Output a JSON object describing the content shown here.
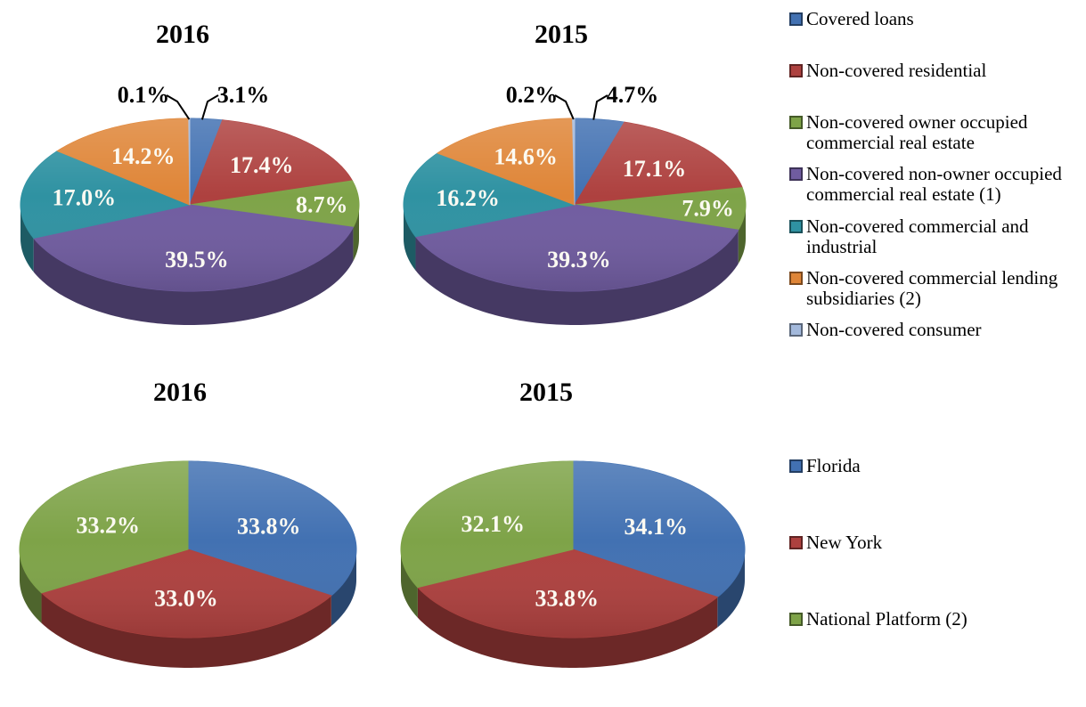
{
  "page": {
    "background": "#FFFFFF"
  },
  "text_colors": {
    "title": "#000000",
    "label_inside": "#FCFAF2",
    "label_outside": "#000000",
    "legend": "#000000",
    "leader_line": "#000000"
  },
  "chart_data": {
    "type": "pie",
    "style": "3d-pie",
    "legend_position": "right",
    "charts": [
      {
        "id": "loans-2016",
        "title": "2016",
        "legend": "loans",
        "categories": [
          "Covered loans",
          "Non-covered residential",
          "Non-covered owner occupied commercial real estate",
          "Non-covered non-owner occupied commercial real estate (1)",
          "Non-covered commercial and industrial",
          "Non-covered commercial lending subsidiaries (2)",
          "Non-covered consumer"
        ],
        "values": [
          3.1,
          17.4,
          8.7,
          39.5,
          17.0,
          14.2,
          0.1
        ],
        "labels": [
          "3.1%",
          "17.4%",
          "8.7%",
          "39.5%",
          "17.0%",
          "14.2%",
          "0.1%"
        ]
      },
      {
        "id": "loans-2015",
        "title": "2015",
        "legend": "loans",
        "categories": [
          "Covered loans",
          "Non-covered residential",
          "Non-covered owner occupied commercial real estate",
          "Non-covered non-owner occupied commercial real estate (1)",
          "Non-covered commercial and industrial",
          "Non-covered commercial lending subsidiaries (2)",
          "Non-covered consumer"
        ],
        "values": [
          4.7,
          17.1,
          7.9,
          39.3,
          16.2,
          14.6,
          0.2
        ],
        "labels": [
          "4.7%",
          "17.1%",
          "7.9%",
          "39.3%",
          "16.2%",
          "14.6%",
          "0.2%"
        ]
      },
      {
        "id": "geography-2016",
        "title": "2016",
        "legend": "geography",
        "categories": [
          "Florida",
          "New York",
          "National Platform (2)"
        ],
        "values": [
          33.8,
          33.0,
          33.2
        ],
        "labels": [
          "33.8%",
          "33.0%",
          "33.2%"
        ]
      },
      {
        "id": "geography-2015",
        "title": "2015",
        "legend": "geography",
        "categories": [
          "Florida",
          "New York",
          "National Platform (2)"
        ],
        "values": [
          34.1,
          33.8,
          32.1
        ],
        "labels": [
          "34.1%",
          "33.8%",
          "32.1%"
        ]
      }
    ],
    "legends": [
      {
        "id": "loans",
        "entries": [
          {
            "label": "Covered loans",
            "color": "#4271B2"
          },
          {
            "label": "Non-covered residential",
            "color": "#AE413F"
          },
          {
            "label": "Non-covered owner occupied commercial real estate",
            "color": "#7EA348"
          },
          {
            "label": "Non-covered non-owner occupied commercial real estate (1)",
            "color": "#705CA0"
          },
          {
            "label": "Non-covered commercial and industrial",
            "color": "#2F92A2"
          },
          {
            "label": "Non-covered commercial lending subsidiaries (2)",
            "color": "#DF8537"
          },
          {
            "label": "Non-covered consumer",
            "color": "#A3B9DC"
          }
        ]
      },
      {
        "id": "geography",
        "entries": [
          {
            "label": "Florida",
            "color": "#4271B2"
          },
          {
            "label": "New York",
            "color": "#AE413F"
          },
          {
            "label": "National Platform (2)",
            "color": "#7EA348"
          }
        ]
      }
    ]
  }
}
